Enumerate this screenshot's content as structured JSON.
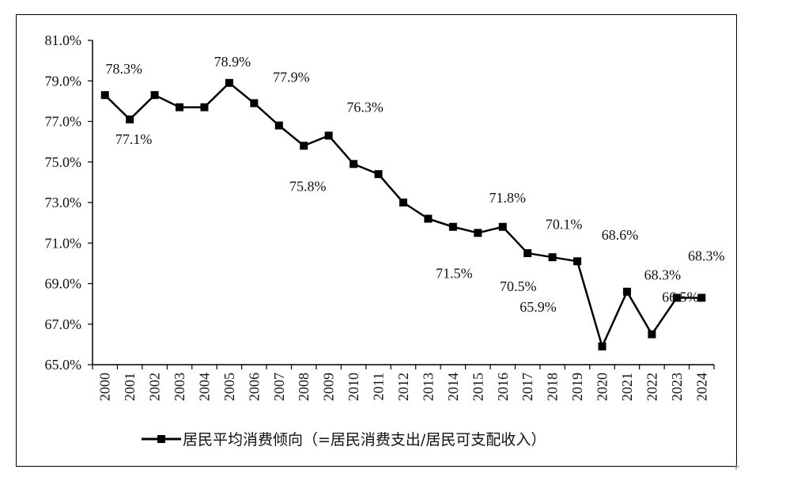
{
  "chart_data": {
    "type": "line",
    "title": "",
    "xlabel": "",
    "ylabel": "",
    "ylim": [
      65.0,
      81.0
    ],
    "y_ticks": [
      "65.0%",
      "67.0%",
      "69.0%",
      "71.0%",
      "73.0%",
      "75.0%",
      "77.0%",
      "79.0%",
      "81.0%"
    ],
    "y_tick_values": [
      65,
      67,
      69,
      71,
      73,
      75,
      77,
      79,
      81
    ],
    "categories": [
      "2000",
      "2001",
      "2002",
      "2003",
      "2004",
      "2005",
      "2006",
      "2007",
      "2008",
      "2009",
      "2010",
      "2011",
      "2012",
      "2013",
      "2014",
      "2015",
      "2016",
      "2017",
      "2018",
      "2019",
      "2020",
      "2021",
      "2022",
      "2023",
      "2024"
    ],
    "series": [
      {
        "name": "居民平均消费倾向（=居民消费支出/居民可支配收入）",
        "values": [
          78.3,
          77.1,
          78.3,
          77.7,
          77.7,
          78.9,
          77.9,
          76.8,
          75.8,
          76.3,
          74.9,
          74.4,
          73.0,
          72.2,
          71.8,
          71.5,
          71.8,
          70.5,
          70.3,
          70.1,
          65.9,
          68.6,
          66.5,
          68.3,
          68.3
        ],
        "color": "#000000",
        "marker": "square"
      }
    ],
    "data_labels": [
      {
        "index": 0,
        "text": "78.3%"
      },
      {
        "index": 1,
        "text": "77.1%"
      },
      {
        "index": 5,
        "text": "78.9%"
      },
      {
        "index": 6,
        "text": "77.9%"
      },
      {
        "index": 8,
        "text": "75.8%"
      },
      {
        "index": 9,
        "text": "76.3%"
      },
      {
        "index": 15,
        "text": "71.5%"
      },
      {
        "index": 16,
        "text": "71.8%"
      },
      {
        "index": 17,
        "text": "70.5%"
      },
      {
        "index": 19,
        "text": "70.1%"
      },
      {
        "index": 20,
        "text": "65.9%"
      },
      {
        "index": 21,
        "text": "68.6%"
      },
      {
        "index": 22,
        "text": "66.5%"
      },
      {
        "index": 23,
        "text": "68.3%"
      },
      {
        "index": 24,
        "text": "68.3%"
      }
    ],
    "grid": false,
    "legend_position": "bottom"
  }
}
